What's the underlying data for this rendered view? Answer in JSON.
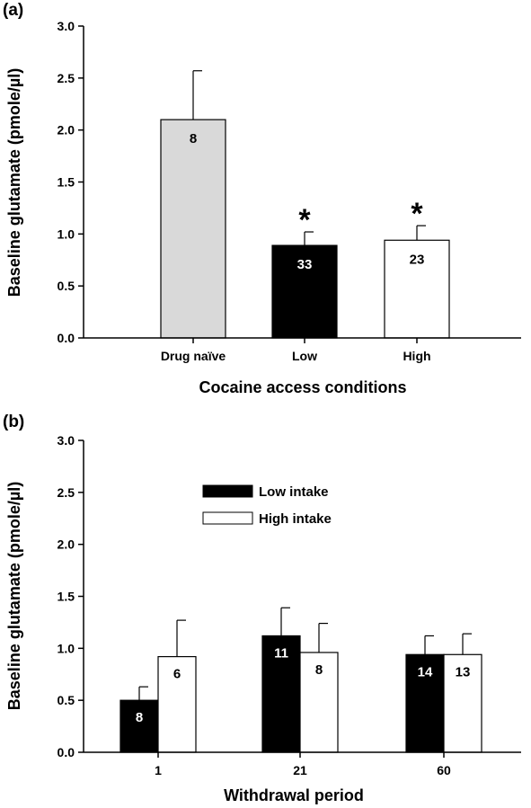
{
  "chart_data": [
    {
      "panel_label": "(a)",
      "type": "bar",
      "categories": [
        "Drug naïve",
        "Low",
        "High"
      ],
      "values": [
        2.1,
        0.89,
        0.94
      ],
      "errors": [
        0.47,
        0.13,
        0.14
      ],
      "n_labels": [
        "8",
        "33",
        "23"
      ],
      "bar_colors": [
        "#d9d9d9",
        "#000000",
        "#ffffff"
      ],
      "n_label_colors": [
        "#000000",
        "#ffffff",
        "#000000"
      ],
      "significance": [
        "",
        "*",
        "*"
      ],
      "xlabel": "Cocaine access conditions",
      "ylabel": "Baseline glutamate (pmole/µl)",
      "ylim": [
        0,
        3.0
      ],
      "yticks": [
        "0.0",
        "0.5",
        "1.0",
        "1.5",
        "2.0",
        "2.5",
        "3.0"
      ],
      "grid": false
    },
    {
      "panel_label": "(b)",
      "type": "bar",
      "categories": [
        "1",
        "21",
        "60"
      ],
      "series": [
        {
          "name": "Low intake",
          "color": "#000000",
          "label_color": "#ffffff",
          "values": [
            0.5,
            1.12,
            0.94
          ],
          "errors": [
            0.13,
            0.27,
            0.18
          ],
          "n_labels": [
            "8",
            "11",
            "14"
          ]
        },
        {
          "name": "High intake",
          "color": "#ffffff",
          "label_color": "#000000",
          "values": [
            0.92,
            0.96,
            0.94
          ],
          "errors": [
            0.35,
            0.28,
            0.2
          ],
          "n_labels": [
            "6",
            "8",
            "13"
          ]
        }
      ],
      "legend_position": "top-left",
      "xlabel": "Withdrawal period",
      "ylabel": "Baseline glutamate (pmole/µl)",
      "ylim": [
        0,
        3.0
      ],
      "yticks": [
        "0.0",
        "0.5",
        "1.0",
        "1.5",
        "2.0",
        "2.5",
        "3.0"
      ],
      "grid": false
    }
  ]
}
